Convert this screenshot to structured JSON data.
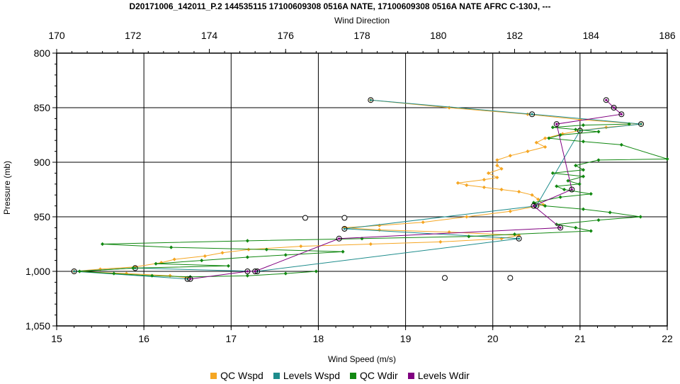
{
  "chart_data": {
    "type": "line",
    "title": "D20171006_142011_P.2 144535115 17100609308 0516A NATE, 17100609308 0516A NATE AFRC C-130J, ---",
    "xlabel": "Wind Speed (m/s)",
    "x2label": "Wind Direction",
    "ylabel": "Pressure (mb)",
    "xlim": [
      15,
      22
    ],
    "x2lim": [
      170,
      186
    ],
    "ylim": [
      800,
      1050
    ],
    "y_inverted": true,
    "grid": true,
    "legend_position": "bottom",
    "x_ticks": [
      "15",
      "16",
      "17",
      "18",
      "19",
      "20",
      "21",
      "22"
    ],
    "x2_ticks": [
      "170",
      "172",
      "174",
      "176",
      "178",
      "180",
      "182",
      "184",
      "186"
    ],
    "y_ticks": [
      "800",
      "850",
      "900",
      "950",
      "1,000",
      "1,050"
    ],
    "series": [
      {
        "name": "QC Wspd",
        "color": "#F5A623",
        "axis": "bottom",
        "marker": "diamond",
        "points": [
          [
            18.6,
            843
          ],
          [
            19.5,
            850
          ],
          [
            20.4,
            856
          ],
          [
            21.0,
            861
          ],
          [
            21.7,
            865
          ],
          [
            21.3,
            868
          ],
          [
            21.0,
            871
          ],
          [
            20.8,
            874
          ],
          [
            20.6,
            878
          ],
          [
            20.5,
            882
          ],
          [
            20.6,
            886
          ],
          [
            20.4,
            890
          ],
          [
            20.2,
            894
          ],
          [
            20.05,
            898
          ],
          [
            20.05,
            903
          ],
          [
            20.1,
            906
          ],
          [
            19.95,
            910
          ],
          [
            20.05,
            914
          ],
          [
            19.9,
            916
          ],
          [
            19.6,
            919
          ],
          [
            19.7,
            921
          ],
          [
            19.9,
            923
          ],
          [
            20.1,
            925
          ],
          [
            20.3,
            927
          ],
          [
            20.45,
            930
          ],
          [
            20.52,
            934
          ],
          [
            20.58,
            939
          ],
          [
            20.2,
            945
          ],
          [
            19.7,
            950
          ],
          [
            19.2,
            955
          ],
          [
            18.7,
            958
          ],
          [
            18.3,
            960
          ],
          [
            18.7,
            962
          ],
          [
            19.5,
            964
          ],
          [
            20.3,
            967
          ],
          [
            20.1,
            970
          ],
          [
            19.4,
            973
          ],
          [
            18.6,
            975
          ],
          [
            17.8,
            977
          ],
          [
            17.2,
            980
          ],
          [
            16.9,
            983
          ],
          [
            16.7,
            986
          ],
          [
            16.35,
            989
          ],
          [
            16.2,
            992
          ],
          [
            15.9,
            996
          ],
          [
            15.5,
            998
          ],
          [
            15.2,
            1000
          ],
          [
            15.8,
            1002
          ],
          [
            16.3,
            1004
          ],
          [
            16.5,
            1006
          ]
        ]
      },
      {
        "name": "Levels Wspd",
        "color": "#1E8C8C",
        "axis": "bottom",
        "marker": "circle",
        "points": [
          [
            18.6,
            843
          ],
          [
            20.45,
            856
          ],
          [
            21.7,
            865
          ],
          [
            21.0,
            871
          ],
          [
            20.5,
            940
          ],
          [
            18.3,
            961
          ],
          [
            20.3,
            970
          ],
          [
            17.3,
            1000
          ],
          [
            15.9,
            997
          ],
          [
            15.2,
            1000
          ],
          [
            16.5,
            1007
          ]
        ]
      },
      {
        "name": "QC Wdir",
        "color": "#118811",
        "axis": "top",
        "marker": "diamond",
        "points": [
          [
            185.0,
            865
          ],
          [
            183.8,
            866
          ],
          [
            183.0,
            868
          ],
          [
            183.6,
            870
          ],
          [
            184.2,
            872
          ],
          [
            183.2,
            875
          ],
          [
            182.9,
            878
          ],
          [
            183.8,
            881
          ],
          [
            184.8,
            884
          ],
          [
            186.0,
            897
          ],
          [
            184.2,
            898
          ],
          [
            183.6,
            903
          ],
          [
            183.8,
            907
          ],
          [
            183.0,
            910
          ],
          [
            183.8,
            913
          ],
          [
            183.4,
            917
          ],
          [
            183.7,
            920
          ],
          [
            183.1,
            922
          ],
          [
            183.3,
            925
          ],
          [
            184.0,
            929
          ],
          [
            183.2,
            932
          ],
          [
            182.5,
            937
          ],
          [
            182.8,
            940
          ],
          [
            183.8,
            943
          ],
          [
            184.5,
            946
          ],
          [
            185.3,
            950
          ],
          [
            184.2,
            953
          ],
          [
            183.1,
            957
          ],
          [
            183.6,
            960
          ],
          [
            184.0,
            963
          ],
          [
            182.0,
            966
          ],
          [
            180.8,
            968
          ],
          [
            178.0,
            970
          ],
          [
            175.0,
            972
          ],
          [
            171.2,
            975
          ],
          [
            173.0,
            978
          ],
          [
            175.5,
            980
          ],
          [
            177.5,
            982
          ],
          [
            176.0,
            985
          ],
          [
            175.0,
            987
          ],
          [
            173.8,
            990
          ],
          [
            172.6,
            993
          ],
          [
            174.5,
            995
          ],
          [
            172.0,
            997
          ],
          [
            170.6,
            1000
          ],
          [
            171.5,
            1002
          ],
          [
            172.5,
            1004
          ],
          [
            173.5,
            1005
          ],
          [
            175.0,
            1004
          ],
          [
            176.0,
            1002
          ],
          [
            176.8,
            1000
          ]
        ]
      },
      {
        "name": "Levels Wdir",
        "color": "#800080",
        "axis": "top",
        "marker": "circle",
        "points": [
          [
            184.4,
            843
          ],
          [
            184.6,
            850
          ],
          [
            184.8,
            856
          ],
          [
            183.1,
            865
          ],
          [
            183.5,
            925
          ],
          [
            182.5,
            940
          ],
          [
            183.2,
            960
          ],
          [
            177.4,
            970
          ],
          [
            175.2,
            1000
          ],
          [
            175.0,
            1000
          ],
          [
            173.5,
            1007
          ]
        ]
      }
    ],
    "unconnected_markers": [
      [
        17.85,
        951
      ],
      [
        18.3,
        951
      ],
      [
        19.45,
        1006
      ],
      [
        20.2,
        1006
      ]
    ]
  }
}
